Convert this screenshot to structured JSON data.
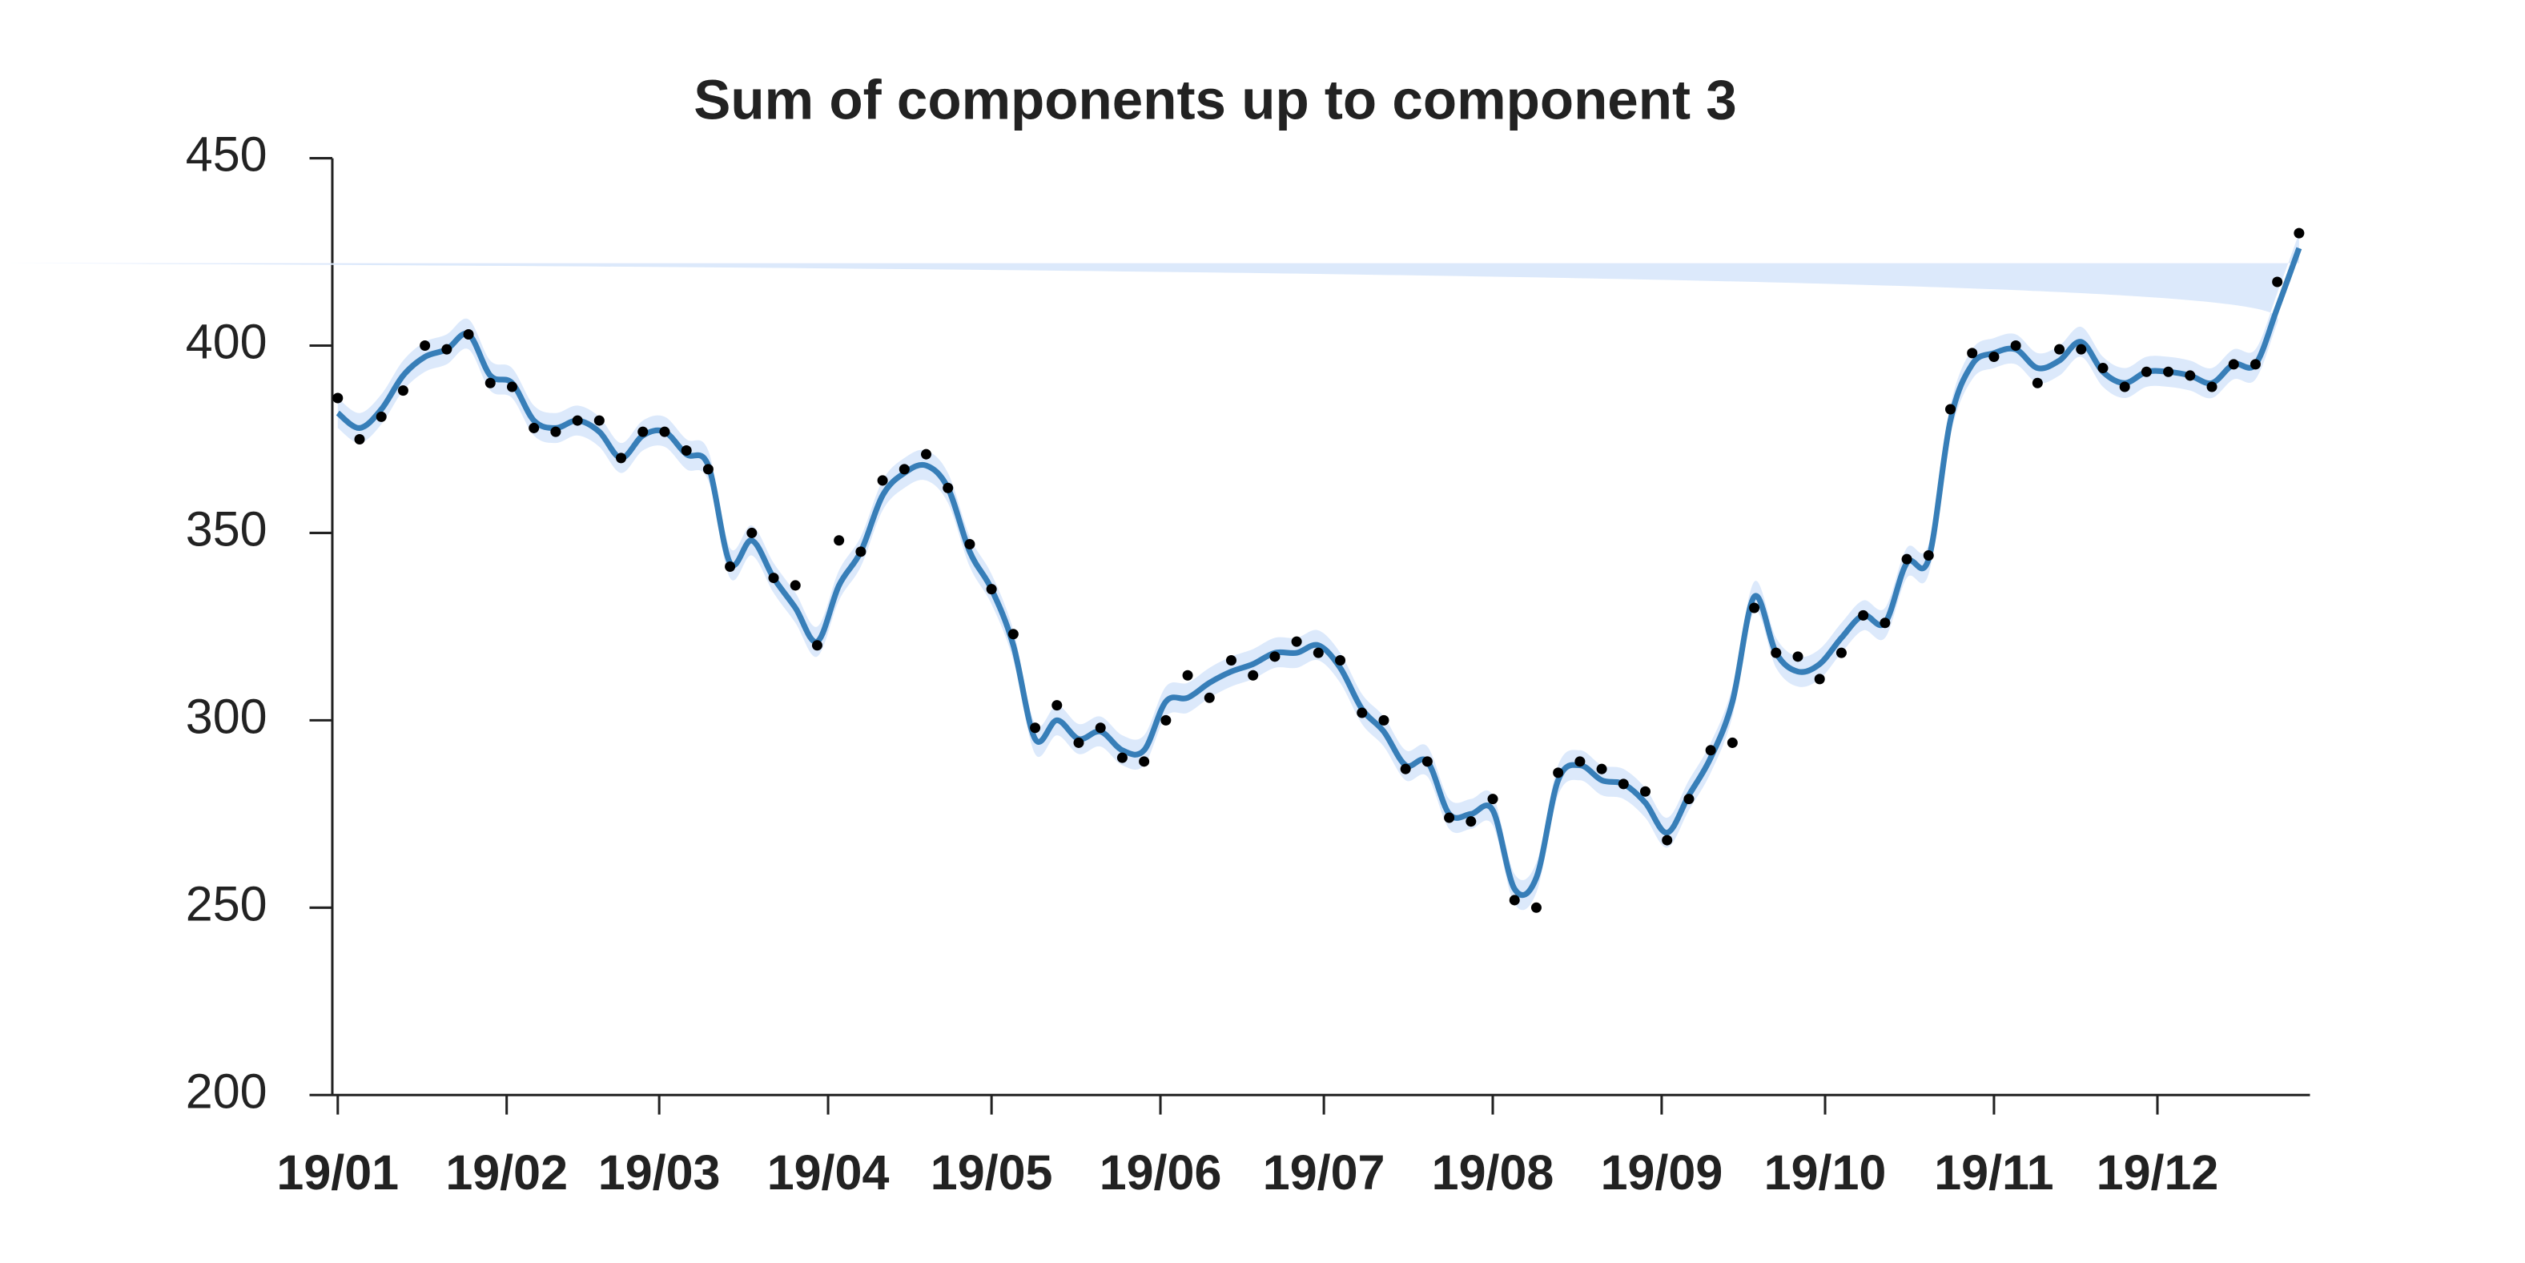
{
  "chart_data": {
    "type": "line",
    "title": "Sum of components up to component 3",
    "xlim": [
      -1,
      362
    ],
    "xticks": [
      {
        "value": 0,
        "label": "19/01"
      },
      {
        "value": 31,
        "label": "19/02"
      },
      {
        "value": 59,
        "label": "19/03"
      },
      {
        "value": 90,
        "label": "19/04"
      },
      {
        "value": 120,
        "label": "19/05"
      },
      {
        "value": 151,
        "label": "19/06"
      },
      {
        "value": 181,
        "label": "19/07"
      },
      {
        "value": 212,
        "label": "19/08"
      },
      {
        "value": 243,
        "label": "19/09"
      },
      {
        "value": 273,
        "label": "19/10"
      },
      {
        "value": 304,
        "label": "19/11"
      },
      {
        "value": 334,
        "label": "19/12"
      }
    ],
    "ylim": [
      200,
      450
    ],
    "yticks": [
      200,
      250,
      300,
      350,
      400,
      450
    ],
    "x": [
      0,
      4,
      8,
      12,
      16,
      20,
      24,
      28,
      32,
      36,
      40,
      44,
      48,
      52,
      56,
      60,
      64,
      68,
      72,
      76,
      80,
      84,
      88,
      92,
      96,
      100,
      104,
      108,
      112,
      116,
      120,
      124,
      128,
      132,
      136,
      140,
      144,
      148,
      152,
      156,
      160,
      164,
      168,
      172,
      176,
      180,
      184,
      188,
      192,
      196,
      200,
      204,
      208,
      212,
      216,
      220,
      224,
      228,
      232,
      236,
      240,
      244,
      248,
      252,
      256,
      260,
      264,
      268,
      272,
      276,
      280,
      284,
      288,
      292,
      296,
      300,
      304,
      308,
      312,
      316,
      320,
      324,
      328,
      332,
      336,
      340,
      344,
      348,
      352,
      356,
      360
    ],
    "line": {
      "color": "#377eb8",
      "values": [
        382,
        378,
        383,
        392,
        397,
        399,
        403,
        392,
        390,
        380,
        378,
        380,
        377,
        370,
        376,
        377,
        371,
        368,
        342,
        348,
        338,
        330,
        321,
        336,
        345,
        360,
        366,
        368,
        362,
        345,
        335,
        320,
        295,
        300,
        295,
        297,
        292,
        292,
        305,
        306,
        310,
        313,
        315,
        318,
        318,
        320,
        314,
        303,
        297,
        288,
        289,
        275,
        275,
        276,
        255,
        258,
        284,
        288,
        284,
        283,
        278,
        270,
        280,
        290,
        305,
        333,
        318,
        313,
        315,
        322,
        328,
        326,
        342,
        343,
        380,
        395,
        398,
        399,
        394,
        396,
        401,
        393,
        390,
        393,
        393,
        392,
        390,
        395,
        395,
        410,
        426
      ]
    },
    "band": {
      "color": "#dce9fb",
      "lower": [
        378,
        374,
        379,
        388,
        393,
        395,
        399,
        388,
        386,
        376,
        374,
        376,
        373,
        366,
        372,
        373,
        367,
        364,
        338,
        344,
        334,
        326,
        317,
        332,
        341,
        356,
        362,
        364,
        358,
        341,
        331,
        316,
        291,
        296,
        291,
        293,
        288,
        288,
        301,
        302,
        306,
        309,
        311,
        314,
        314,
        316,
        310,
        299,
        293,
        284,
        285,
        271,
        271,
        272,
        251,
        254,
        280,
        284,
        280,
        279,
        274,
        266,
        276,
        286,
        301,
        329,
        314,
        309,
        311,
        318,
        324,
        322,
        338,
        339,
        376,
        391,
        394,
        395,
        390,
        392,
        397,
        389,
        386,
        389,
        389,
        388,
        386,
        391,
        391,
        406,
        422
      ],
      "upper": [
        386,
        382,
        387,
        396,
        401,
        403,
        407,
        396,
        394,
        384,
        382,
        384,
        381,
        374,
        380,
        381,
        375,
        372,
        346,
        352,
        342,
        334,
        325,
        340,
        349,
        364,
        370,
        372,
        366,
        349,
        339,
        324,
        299,
        304,
        299,
        301,
        296,
        296,
        309,
        310,
        314,
        317,
        319,
        322,
        322,
        324,
        318,
        307,
        301,
        292,
        293,
        279,
        279,
        280,
        259,
        262,
        288,
        292,
        288,
        287,
        282,
        274,
        284,
        294,
        309,
        337,
        322,
        317,
        319,
        326,
        332,
        330,
        346,
        347,
        384,
        399,
        402,
        403,
        398,
        400,
        405,
        397,
        394,
        397,
        397,
        396,
        394,
        399,
        399,
        414,
        430
      ]
    },
    "points": {
      "color": "#000000",
      "values": [
        386,
        375,
        381,
        388,
        400,
        399,
        403,
        390,
        389,
        378,
        377,
        380,
        380,
        370,
        377,
        377,
        372,
        367,
        341,
        350,
        338,
        336,
        320,
        348,
        345,
        364,
        367,
        371,
        362,
        347,
        335,
        323,
        298,
        304,
        294,
        298,
        290,
        289,
        300,
        312,
        306,
        316,
        312,
        317,
        321,
        318,
        316,
        302,
        300,
        287,
        289,
        274,
        273,
        279,
        252,
        250,
        286,
        289,
        287,
        283,
        281,
        268,
        279,
        292,
        294,
        330,
        318,
        317,
        311,
        318,
        328,
        326,
        343,
        344,
        383,
        398,
        397,
        400,
        390,
        399,
        399,
        394,
        389,
        393,
        393,
        392,
        389,
        395,
        395,
        417,
        430
      ]
    }
  }
}
